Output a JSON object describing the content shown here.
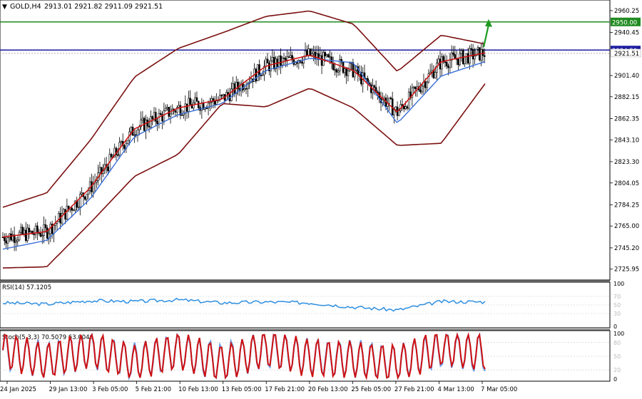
{
  "header": {
    "symbol": "GOLD,H4",
    "ohlc": "2913.01 2921.82 2911.09 2921.51"
  },
  "colors": {
    "candle": "#000000",
    "bollinger": "#7b1010",
    "ma_fast": "#d01010",
    "ma_slow": "#3a6fd8",
    "green_level": "#1f8a1f",
    "blue_level": "#1a1aa0",
    "rsi": "#2f8fe0",
    "stoch_main": "#d01010",
    "stoch_signal": "#6f9de8",
    "arrow": "#1f9a1f"
  },
  "chart_data": [
    {
      "type": "line",
      "title": "",
      "xlabel": "",
      "ylabel": "",
      "ylim": [
        2718,
        2966
      ],
      "y_ticks": [
        2725.95,
        2745.2,
        2765.0,
        2784.25,
        2804.05,
        2823.3,
        2843.1,
        2862.35,
        2882.15,
        2901.4,
        2921.51,
        2940.45,
        2960.25
      ],
      "x_ticks": [
        "24 Jan 2025",
        "29 Jan 13:00",
        "3 Feb 05:00",
        "5 Feb 21:00",
        "10 Feb 13:00",
        "13 Feb 05:00",
        "17 Feb 21:00",
        "20 Feb 13:00",
        "25 Feb 05:00",
        "27 Feb 21:00",
        "4 Mar 13:00",
        "7 Mar 05:00"
      ],
      "x": [
        0,
        16,
        32,
        48,
        64,
        80,
        96,
        112,
        128,
        144,
        160,
        176
      ],
      "horizontal_lines": [
        {
          "label": "2950.00",
          "value": 2950.0
        },
        {
          "label": "2924.50",
          "value": 2924.5
        }
      ],
      "price_label": "2921.51",
      "series": [
        {
          "values": [
            2755,
            2760,
            2800,
            2853,
            2872,
            2880,
            2910,
            2920,
            2906,
            2868,
            2914,
            2922
          ]
        },
        {
          "values": [
            2744,
            2752,
            2790,
            2846,
            2866,
            2876,
            2906,
            2917,
            2913,
            2858,
            2901,
            2914
          ]
        },
        {
          "values": [
            2782,
            2795,
            2843,
            2900,
            2926,
            2940,
            2955,
            2960,
            2948,
            2905,
            2938,
            2930
          ]
        },
        {
          "values": [
            2727,
            2728,
            2768,
            2810,
            2830,
            2876,
            2873,
            2890,
            2872,
            2838,
            2840,
            2894
          ]
        }
      ]
    },
    {
      "type": "line",
      "title": "RSI(14) 57.1205",
      "ylim": [
        0,
        100
      ],
      "y_ticks": [
        100,
        70,
        50,
        30,
        0
      ],
      "x": [
        0,
        16,
        32,
        48,
        64,
        80,
        96,
        112,
        128,
        144,
        160,
        176
      ],
      "series": [
        {
          "values": [
            55,
            52,
            60,
            58,
            62,
            55,
            57,
            55,
            45,
            38,
            58,
            57.12
          ]
        }
      ]
    },
    {
      "type": "line",
      "title": "Stoch(5,3,3) 70.5079 63.0046",
      "ylim": [
        0,
        100
      ],
      "y_ticks": [
        100,
        80,
        50,
        20,
        0
      ],
      "x": [
        0,
        16,
        32,
        48,
        64,
        80,
        96,
        112,
        128,
        144,
        160,
        176
      ],
      "series": [
        {
          "values": [
            85,
            20,
            90,
            15,
            85,
            10,
            95,
            40,
            30,
            10,
            95,
            70.51
          ]
        },
        {
          "values": [
            80,
            25,
            85,
            20,
            80,
            15,
            90,
            45,
            35,
            15,
            90,
            63.0
          ]
        }
      ]
    }
  ]
}
